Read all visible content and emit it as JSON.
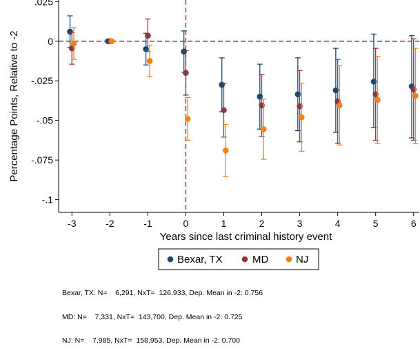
{
  "chart_data": {
    "type": "scatter",
    "subtype": "event-study coefficients with 95% confidence intervals",
    "title": "",
    "xlabel": "Years since last criminal history event",
    "ylabel": "Percentage Points, Relative to -2",
    "x": [
      -3,
      -2,
      -1,
      0,
      1,
      2,
      3,
      4,
      5,
      6
    ],
    "xlim": [
      -3.35,
      6.15
    ],
    "ylim": [
      -0.108,
      0.026
    ],
    "yticks": [
      0.025,
      0,
      -0.025,
      -0.05,
      -0.075,
      -0.1
    ],
    "ytick_labels": [
      ".025",
      "0",
      "-.025",
      "-.05",
      "-.075",
      "-.1"
    ],
    "xticks": [
      -3,
      -2,
      -1,
      0,
      1,
      2,
      3,
      4,
      5,
      6
    ],
    "xtick_labels": [
      "-3",
      "-2",
      "-1",
      "0",
      "1",
      "2",
      "3",
      "4",
      "5",
      "6"
    ],
    "reference_lines": {
      "horizontal_y": 0,
      "vertical_x": 0,
      "style": "dashed",
      "color": "#a0224f"
    },
    "grid": false,
    "legend_position": "bottom",
    "series": [
      {
        "name": "Bexar, TX",
        "color": "#1a476f",
        "offset": -0.05,
        "values": [
          0.006,
          0.0,
          -0.005,
          -0.0065,
          -0.0275,
          -0.035,
          -0.0335,
          -0.031,
          -0.0255,
          -0.0285
        ],
        "ci_low": [
          -0.004,
          0.0,
          -0.015,
          -0.0195,
          -0.0445,
          -0.0555,
          -0.0565,
          -0.0575,
          -0.0545,
          -0.061
        ],
        "ci_high": [
          0.016,
          0.0,
          0.005,
          0.0065,
          -0.0105,
          -0.0145,
          -0.0105,
          -0.0045,
          0.0045,
          0.0035
        ]
      },
      {
        "name": "MD",
        "color": "#90353b",
        "offset": 0.0,
        "values": [
          -0.0045,
          0.0,
          0.0035,
          -0.02,
          -0.0435,
          -0.0405,
          -0.041,
          -0.038,
          -0.0335,
          -0.0305
        ],
        "ci_low": [
          -0.0145,
          0.0,
          -0.0065,
          -0.034,
          -0.0605,
          -0.06,
          -0.0635,
          -0.0645,
          -0.0625,
          -0.0625
        ],
        "ci_high": [
          0.0055,
          0.0,
          0.014,
          -0.006,
          -0.0265,
          -0.021,
          -0.0185,
          -0.0115,
          -0.0045,
          0.0015
        ]
      },
      {
        "name": "NJ",
        "color": "#ff7f0e",
        "offset": 0.05,
        "values": [
          -0.0015,
          0.0,
          -0.0125,
          -0.049,
          -0.069,
          -0.0555,
          -0.048,
          -0.0405,
          -0.037,
          -0.0345
        ],
        "ci_low": [
          -0.0115,
          0.0,
          -0.0225,
          -0.0625,
          -0.0855,
          -0.0745,
          -0.0695,
          -0.0655,
          -0.0645,
          -0.0645
        ],
        "ci_high": [
          0.0085,
          0.0,
          -0.0025,
          -0.0355,
          -0.0525,
          -0.0365,
          -0.0265,
          -0.0155,
          -0.0095,
          -0.0045
        ]
      }
    ]
  },
  "notes": [
    "Bexar, TX: N=    6,291, NxT=  126,933, Dep. Mean in -2: 0.756",
    "MD: N=    7,331, NxT=  143,700, Dep. Mean in -2: 0.725",
    "NJ: N=    7,985, NxT=  158,953, Dep. Mean in -2: 0.700"
  ]
}
